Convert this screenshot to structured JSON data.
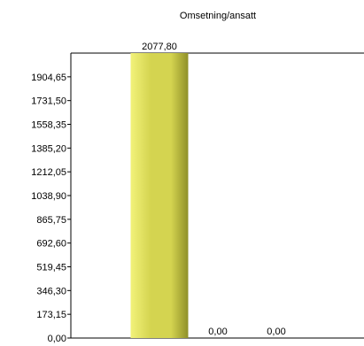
{
  "chart_data": {
    "type": "bar",
    "title": "Omsetning/ansatt",
    "xlabel": "",
    "ylabel": "",
    "categories": [
      "",
      "",
      ""
    ],
    "values": [
      2077.8,
      0.0,
      0.0
    ],
    "value_labels": [
      "2077,80",
      "0,00",
      "0,00"
    ],
    "yticks": [
      "0,00",
      "173,15",
      "346,30",
      "519,45",
      "692,60",
      "865,75",
      "1038,90",
      "1212,05",
      "1385,20",
      "1558,35",
      "1731,50",
      "1904,65"
    ],
    "ylim": [
      0,
      2077.8
    ],
    "grid": false,
    "legend": "none",
    "colors": {
      "bar_light": "#f2f27a",
      "bar_mid": "#d4d450",
      "bar_dark": "#8f9028",
      "axis": "#000000"
    }
  }
}
